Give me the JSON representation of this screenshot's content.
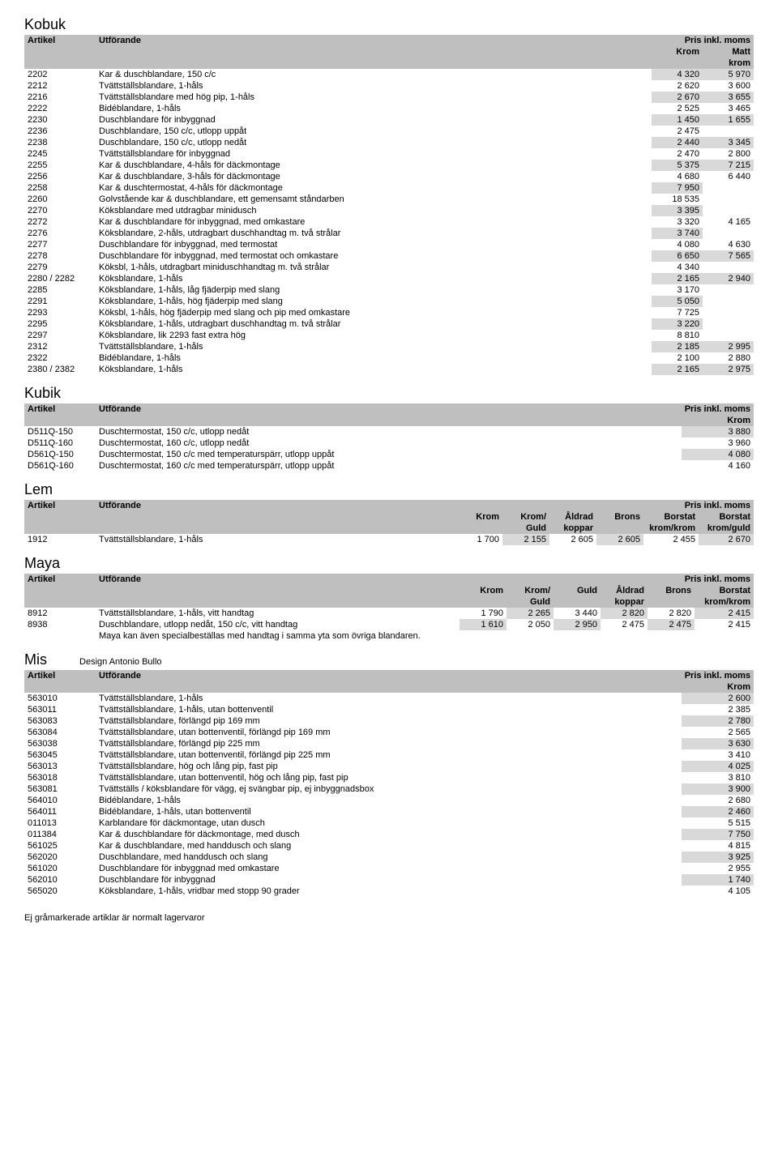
{
  "kobuk": {
    "title": "Kobuk",
    "header": {
      "artikel": "Artikel",
      "utforande": "Utförande",
      "pris": "Pris inkl. moms",
      "krom": "Krom",
      "matt": "Matt",
      "kromsub": "krom"
    },
    "rows": [
      {
        "art": "2202",
        "desc": "Kar & duschblandare, 150 c/c",
        "krom": "4 320",
        "matt": "5 970",
        "g": true
      },
      {
        "art": "2212",
        "desc": "Tvättställsblandare, 1-håls",
        "krom": "2 620",
        "matt": "3 600",
        "g": false
      },
      {
        "art": "2216",
        "desc": "Tvättställsblandare med hög pip, 1-håls",
        "krom": "2 670",
        "matt": "3 655",
        "g": true
      },
      {
        "art": "2222",
        "desc": "Bidéblandare, 1-håls",
        "krom": "2 525",
        "matt": "3 465",
        "g": false
      },
      {
        "art": "2230",
        "desc": "Duschblandare för inbyggnad",
        "krom": "1 450",
        "matt": "1 655",
        "g": true
      },
      {
        "art": "2236",
        "desc": "Duschblandare, 150 c/c, utlopp uppåt",
        "krom": "2 475",
        "matt": "",
        "g": false
      },
      {
        "art": "2238",
        "desc": "Duschblandare, 150 c/c, utlopp nedåt",
        "krom": "2 440",
        "matt": "3 345",
        "g": true
      },
      {
        "art": "2245",
        "desc": "Tvättställsblandare för inbyggnad",
        "krom": "2 470",
        "matt": "2 800",
        "g": false
      },
      {
        "art": "2255",
        "desc": "Kar & duschblandare, 4-håls för däckmontage",
        "krom": "5 375",
        "matt": "7 215",
        "g": true
      },
      {
        "art": "2256",
        "desc": "Kar & duschblandare, 3-håls för däckmontage",
        "krom": "4 680",
        "matt": "6 440",
        "g": false
      },
      {
        "art": "2258",
        "desc": "Kar & duschtermostat, 4-håls för däckmontage",
        "krom": "7 950",
        "matt": "",
        "g": true
      },
      {
        "art": "2260",
        "desc": "Golvstående kar & duschblandare, ett gemensamt ståndarben",
        "krom": "18 535",
        "matt": "",
        "g": false
      },
      {
        "art": "2270",
        "desc": "Köksblandare med utdragbar minidusch",
        "krom": "3 395",
        "matt": "",
        "g": true
      },
      {
        "art": "2272",
        "desc": "Kar & duschblandare för inbyggnad, med omkastare",
        "krom": "3 320",
        "matt": "4 165",
        "g": false
      },
      {
        "art": "2276",
        "desc": "Köksblandare, 2-håls, utdragbart duschhandtag m. två strålar",
        "krom": "3 740",
        "matt": "",
        "g": true
      },
      {
        "art": "2277",
        "desc": "Duschblandare för inbyggnad, med termostat",
        "krom": "4 080",
        "matt": "4 630",
        "g": false
      },
      {
        "art": "2278",
        "desc": "Duschblandare för inbyggnad, med termostat och omkastare",
        "krom": "6 650",
        "matt": "7 565",
        "g": true
      },
      {
        "art": "2279",
        "desc": "Köksbl, 1-håls, utdragbart miniduschhandtag m. två strålar",
        "krom": "4 340",
        "matt": "",
        "g": false
      },
      {
        "art": "2280 / 2282",
        "desc": "Köksblandare, 1-håls",
        "krom": "2 165",
        "matt": "2 940",
        "g": true
      },
      {
        "art": "2285",
        "desc": "Köksblandare, 1-håls, låg fjäderpip med slang",
        "krom": "3 170",
        "matt": "",
        "g": false
      },
      {
        "art": "2291",
        "desc": "Köksblandare, 1-håls, hög fjäderpip med slang",
        "krom": "5 050",
        "matt": "",
        "g": true
      },
      {
        "art": "2293",
        "desc": "Köksbl, 1-håls, hög fjäderpip med slang och pip med omkastare",
        "krom": "7 725",
        "matt": "",
        "g": false
      },
      {
        "art": "2295",
        "desc": "Köksblandare, 1-håls, utdragbart duschhandtag m. två strålar",
        "krom": "3 220",
        "matt": "",
        "g": true
      },
      {
        "art": "2297",
        "desc": "Köksblandare, lik 2293 fast extra hög",
        "krom": "8 810",
        "matt": "",
        "g": false
      },
      {
        "art": "2312",
        "desc": "Tvättställsblandare, 1-håls",
        "krom": "2 185",
        "matt": "2 995",
        "g": true
      },
      {
        "art": "2322",
        "desc": "Bidéblandare, 1-håls",
        "krom": "2 100",
        "matt": "2 880",
        "g": false
      },
      {
        "art": "2380 / 2382",
        "desc": "Köksblandare, 1-håls",
        "krom": "2 165",
        "matt": "2 975",
        "g": true
      }
    ]
  },
  "kubik": {
    "title": "Kubik",
    "header": {
      "artikel": "Artikel",
      "utforande": "Utförande",
      "pris": "Pris inkl. moms",
      "krom": "Krom"
    },
    "rows": [
      {
        "art": "D511Q-150",
        "desc": "Duschtermostat, 150 c/c, utlopp nedåt",
        "krom": "3 880",
        "g": true
      },
      {
        "art": "D511Q-160",
        "desc": "Duschtermostat, 160 c/c, utlopp nedåt",
        "krom": "3 960",
        "g": false
      },
      {
        "art": "D561Q-150",
        "desc": "Duschtermostat, 150 c/c med temperaturspärr, utlopp uppåt",
        "krom": "4 080",
        "g": true
      },
      {
        "art": "D561Q-160",
        "desc": "Duschtermostat, 160 c/c med temperaturspärr, utlopp uppåt",
        "krom": "4 160",
        "g": false
      }
    ]
  },
  "lem": {
    "title": "Lem",
    "header": {
      "artikel": "Artikel",
      "utforande": "Utförande",
      "pris": "Pris inkl. moms",
      "c1": "Krom",
      "c2": "Krom/",
      "c2b": "Guld",
      "c3": "Åldrad",
      "c3b": "koppar",
      "c4": "Brons",
      "c5": "Borstat",
      "c5b": "krom/krom",
      "c6": "Borstat",
      "c6b": "krom/guld"
    },
    "rows": [
      {
        "art": "1912",
        "desc": "Tvättställsblandare, 1-håls",
        "v": [
          "1 700",
          "2 155",
          "2 605",
          "2 605",
          "2 455",
          "2 670"
        ],
        "g": true
      }
    ]
  },
  "maya": {
    "title": "Maya",
    "header": {
      "artikel": "Artikel",
      "utforande": "Utförande",
      "pris": "Pris inkl. moms",
      "c1": "Krom",
      "c2": "Krom/",
      "c2b": "Guld",
      "c3": "Guld",
      "c4": "Åldrad",
      "c4b": "koppar",
      "c5": "Brons",
      "c6": "Borstat",
      "c6b": "krom/krom"
    },
    "rows": [
      {
        "art": "8912",
        "desc": "Tvättställsblandare, 1-håls, vitt handtag",
        "v": [
          "1 790",
          "2 265",
          "3 440",
          "2 820",
          "2 820",
          "2 415"
        ],
        "g": true
      },
      {
        "art": "8938",
        "desc": "Duschblandare, utlopp nedåt, 150 c/c, vitt handtag",
        "v": [
          "1 610",
          "2 050",
          "2 950",
          "2 475",
          "2 475",
          "2 415"
        ],
        "g": false
      }
    ],
    "note": "Maya kan även specialbeställas med handtag i samma yta som övriga blandaren."
  },
  "mis": {
    "title": "Mis",
    "design": "Design Antonio Bullo",
    "header": {
      "artikel": "Artikel",
      "utforande": "Utförande",
      "pris": "Pris inkl. moms",
      "krom": "Krom"
    },
    "rows": [
      {
        "art": "563010",
        "desc": "Tvättställsblandare, 1-håls",
        "krom": "2 600",
        "g": true
      },
      {
        "art": "563011",
        "desc": "Tvättställsblandare, 1-håls, utan bottenventil",
        "krom": "2 385",
        "g": false
      },
      {
        "art": "563083",
        "desc": "Tvättställsblandare, förlängd pip 169 mm",
        "krom": "2 780",
        "g": true
      },
      {
        "art": "563084",
        "desc": "Tvättställsblandare, utan bottenventil, förlängd pip 169 mm",
        "krom": "2 565",
        "g": false
      },
      {
        "art": "563038",
        "desc": "Tvättställsblandare, förlängd pip 225 mm",
        "krom": "3 630",
        "g": true
      },
      {
        "art": "563045",
        "desc": "Tvättställsblandare, utan bottenventil, förlängd pip 225 mm",
        "krom": "3 410",
        "g": false
      },
      {
        "art": "563013",
        "desc": "Tvättställsblandare, hög och lång pip, fast pip",
        "krom": "4 025",
        "g": true
      },
      {
        "art": "563018",
        "desc": "Tvättställsblandare, utan bottenventil, hög och lång pip, fast pip",
        "krom": "3 810",
        "g": false
      },
      {
        "art": "563081",
        "desc": "Tvättställs / köksblandare för vägg, ej svängbar pip, ej inbyggnadsbox",
        "krom": "3 900",
        "g": true
      },
      {
        "art": "564010",
        "desc": "Bidéblandare, 1-håls",
        "krom": "2 680",
        "g": false
      },
      {
        "art": "564011",
        "desc": "Bidéblandare, 1-håls, utan bottenventil",
        "krom": "2 460",
        "g": true
      },
      {
        "art": "011013",
        "desc": "Karblandare för däckmontage, utan dusch",
        "krom": "5 515",
        "g": false
      },
      {
        "art": "011384",
        "desc": "Kar & duschblandare för däckmontage, med dusch",
        "krom": "7 750",
        "g": true
      },
      {
        "art": "561025",
        "desc": "Kar & duschblandare, med handdusch och slang",
        "krom": "4 815",
        "g": false
      },
      {
        "art": "562020",
        "desc": "Duschblandare, med handdusch och slang",
        "krom": "3 925",
        "g": true
      },
      {
        "art": "561020",
        "desc": "Duschblandare för inbyggnad med omkastare",
        "krom": "2 955",
        "g": false
      },
      {
        "art": "562010",
        "desc": "Duschblandare för inbyggnad",
        "krom": "1 740",
        "g": true
      },
      {
        "art": "565020",
        "desc": "Köksblandare, 1-håls, vridbar med stopp 90 grader",
        "krom": "4 105",
        "g": false
      }
    ]
  },
  "footer": "Ej gråmarkerade artiklar är normalt lagervaror"
}
